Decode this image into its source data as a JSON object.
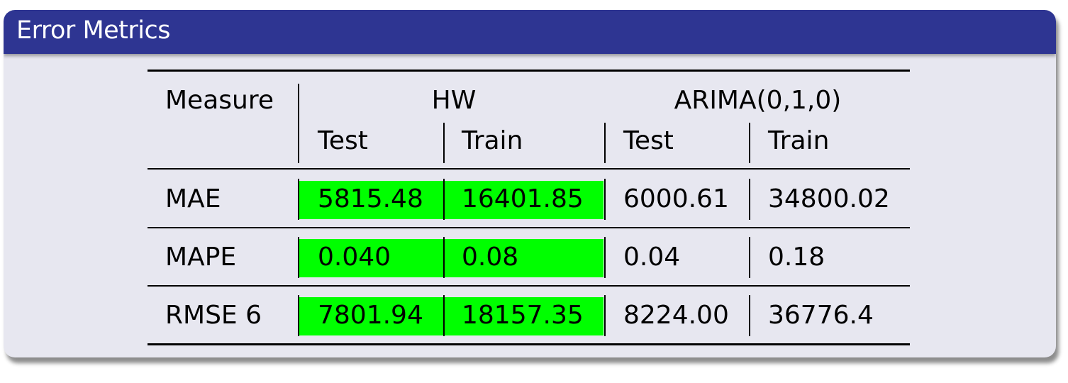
{
  "block": {
    "title": "Error Metrics"
  },
  "table": {
    "header": {
      "measure": "Measure",
      "groups": [
        "HW",
        "ARIMA(0,1,0)"
      ],
      "subcols": [
        "Test",
        "Train",
        "Test",
        "Train"
      ]
    },
    "rows": [
      {
        "label": "MAE",
        "values": [
          "5815.48",
          "16401.85",
          "6000.61",
          "34800.02"
        ],
        "highlighted": [
          true,
          true,
          false,
          false
        ]
      },
      {
        "label": "MAPE",
        "values": [
          "0.040",
          "0.08",
          "0.04",
          "0.18"
        ],
        "highlighted": [
          true,
          true,
          false,
          false
        ]
      },
      {
        "label": "RMSE 6",
        "values": [
          "7801.94",
          "18157.35",
          "8224.00",
          "36776.4"
        ],
        "highlighted": [
          true,
          true,
          false,
          false
        ]
      }
    ],
    "highlight_color": "#00ff00"
  },
  "colors": {
    "title_bar": "#2e3592",
    "block_body": "#e7e7f0"
  }
}
